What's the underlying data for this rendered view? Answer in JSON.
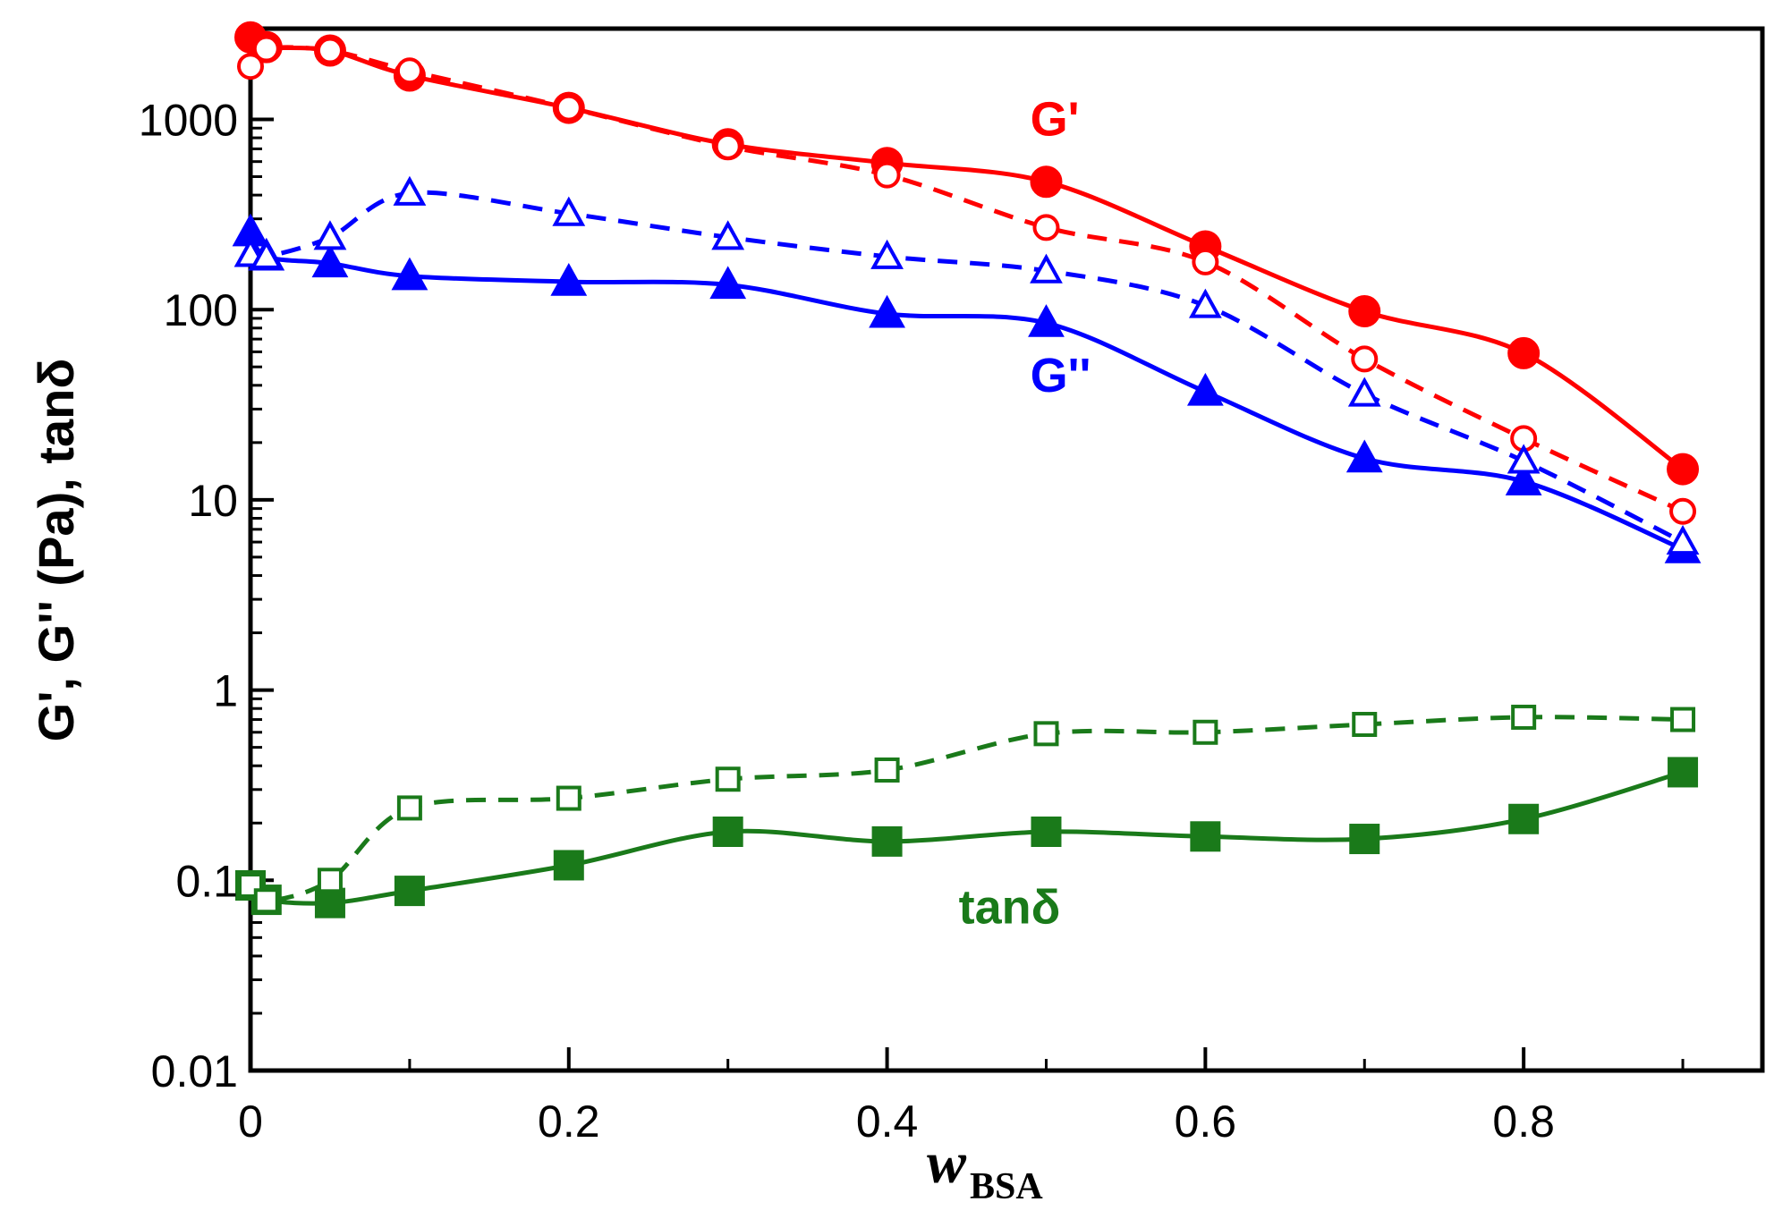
{
  "chart_data": {
    "type": "line",
    "title": "",
    "xlabel": "w",
    "xlabel_subscript": "BSA",
    "ylabel": "G', G'' (Pa), tanδ",
    "xlim": [
      0,
      0.95
    ],
    "ylim": [
      0.01,
      3000
    ],
    "yscale": "log",
    "x_ticks": [
      0,
      0.2,
      0.4,
      0.6,
      0.8
    ],
    "x_tick_labels": [
      "0",
      "0.2",
      "0.4",
      "0.6",
      "0.8"
    ],
    "y_ticks": [
      0.01,
      0.1,
      1,
      10,
      100,
      1000
    ],
    "y_tick_labels": [
      "0.01",
      "0.1",
      "1",
      "10",
      "100",
      "1000"
    ],
    "grid": false,
    "series": [
      {
        "name": "G' (filled)",
        "color": "#ff0000",
        "marker": "circle",
        "filled": true,
        "dashed": false,
        "x": [
          0,
          0.01,
          0.05,
          0.1,
          0.2,
          0.3,
          0.4,
          0.5,
          0.6,
          0.7,
          0.8,
          0.9
        ],
        "y": [
          2700,
          2400,
          2300,
          1700,
          1150,
          740,
          590,
          470,
          215,
          98,
          59,
          14.5
        ]
      },
      {
        "name": "G' (open)",
        "color": "#ff0000",
        "marker": "circle",
        "filled": false,
        "dashed": true,
        "x": [
          0,
          0.01,
          0.05,
          0.1,
          0.2,
          0.3,
          0.4,
          0.5,
          0.6,
          0.7,
          0.8,
          0.9
        ],
        "y": [
          1900,
          2350,
          2300,
          1800,
          1150,
          720,
          510,
          270,
          178,
          55,
          21,
          8.7
        ]
      },
      {
        "name": "G'' (filled)",
        "color": "#0000ff",
        "marker": "triangle",
        "filled": true,
        "dashed": false,
        "x": [
          0,
          0.01,
          0.05,
          0.1,
          0.2,
          0.3,
          0.4,
          0.5,
          0.6,
          0.7,
          0.8,
          0.9
        ],
        "y": [
          255,
          190,
          175,
          150,
          140,
          135,
          95,
          85,
          37,
          16.5,
          12.5,
          5.5
        ]
      },
      {
        "name": "G'' (open)",
        "color": "#0000ff",
        "marker": "triangle",
        "filled": false,
        "dashed": true,
        "x": [
          0,
          0.01,
          0.05,
          0.1,
          0.2,
          0.3,
          0.4,
          0.5,
          0.6,
          0.7,
          0.8,
          0.9
        ],
        "y": [
          195,
          190,
          240,
          410,
          320,
          240,
          190,
          160,
          105,
          36,
          16,
          6
        ]
      },
      {
        "name": "tanδ (filled)",
        "color": "#1a7a1a",
        "marker": "square",
        "filled": true,
        "dashed": false,
        "x": [
          0,
          0.01,
          0.05,
          0.1,
          0.2,
          0.3,
          0.4,
          0.5,
          0.6,
          0.7,
          0.8,
          0.9
        ],
        "y": [
          0.094,
          0.079,
          0.076,
          0.088,
          0.12,
          0.18,
          0.16,
          0.18,
          0.17,
          0.165,
          0.21,
          0.37
        ]
      },
      {
        "name": "tanδ (open)",
        "color": "#1a7a1a",
        "marker": "square",
        "filled": false,
        "dashed": true,
        "x": [
          0,
          0.01,
          0.05,
          0.1,
          0.2,
          0.3,
          0.4,
          0.5,
          0.6,
          0.7,
          0.8,
          0.9
        ],
        "y": [
          0.094,
          0.078,
          0.1,
          0.24,
          0.27,
          0.34,
          0.38,
          0.59,
          0.6,
          0.66,
          0.72,
          0.7
        ]
      }
    ],
    "annotations": [
      {
        "text": "G'",
        "color": "#ff0000",
        "x": 0.49,
        "y": 1000
      },
      {
        "text": "G''",
        "color": "#0000ff",
        "x": 0.49,
        "y": 45
      },
      {
        "text": "tanδ",
        "color": "#1a7a1a",
        "x": 0.445,
        "y": 0.072
      }
    ]
  }
}
